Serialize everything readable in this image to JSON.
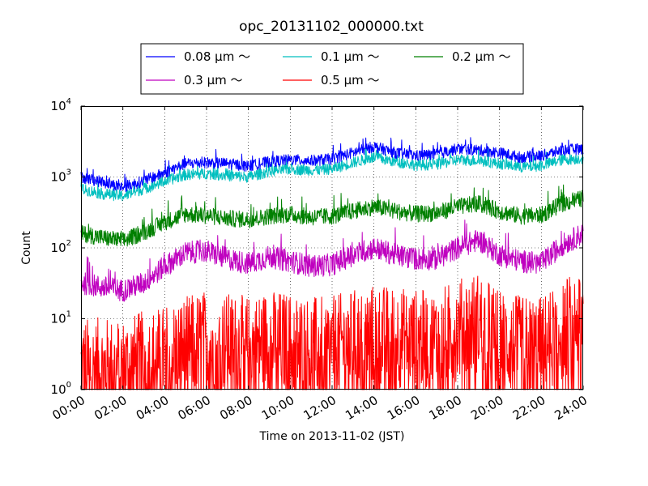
{
  "chart_data": {
    "type": "line",
    "title": "opc_20131102_000000.txt",
    "xlabel": "Time on 2013-11-02 (JST)",
    "ylabel": "Count",
    "xlim": [
      "00:00",
      "24:00"
    ],
    "ylim": [
      1,
      10000
    ],
    "yscale": "log",
    "grid": true,
    "legend_position": "top (above plot)",
    "x_ticks": [
      "00:00",
      "02:00",
      "04:00",
      "06:00",
      "08:00",
      "10:00",
      "12:00",
      "14:00",
      "16:00",
      "18:00",
      "20:00",
      "22:00",
      "24:00"
    ],
    "y_ticks": [
      {
        "base": "10",
        "exp": "0",
        "value": 1
      },
      {
        "base": "10",
        "exp": "1",
        "value": 10
      },
      {
        "base": "10",
        "exp": "2",
        "value": 100
      },
      {
        "base": "10",
        "exp": "3",
        "value": 1000
      },
      {
        "base": "10",
        "exp": "4",
        "value": 10000
      }
    ],
    "x_hours": [
      0,
      1,
      2,
      3,
      4,
      5,
      6,
      7,
      8,
      9,
      10,
      11,
      12,
      13,
      14,
      15,
      16,
      17,
      18,
      19,
      20,
      21,
      22,
      23,
      24
    ],
    "series": [
      {
        "name": "0.08 μm ～",
        "color": "#0000ff",
        "noise": 0.08,
        "values": [
          1000,
          850,
          720,
          880,
          1150,
          1550,
          1600,
          1550,
          1420,
          1650,
          1750,
          1700,
          1800,
          2200,
          2700,
          2200,
          2000,
          2100,
          2500,
          2400,
          2200,
          1900,
          2000,
          2400,
          2500
        ]
      },
      {
        "name": "0.1 μm ～",
        "color": "#00bfbf",
        "noise": 0.08,
        "values": [
          680,
          580,
          540,
          680,
          870,
          1080,
          1120,
          1050,
          1000,
          1200,
          1300,
          1250,
          1300,
          1600,
          1900,
          1650,
          1480,
          1500,
          1750,
          1700,
          1550,
          1380,
          1450,
          1750,
          1850
        ]
      },
      {
        "name": "0.2 μm ～",
        "color": "#008000",
        "noise": 0.12,
        "values": [
          160,
          140,
          125,
          165,
          230,
          300,
          285,
          260,
          250,
          280,
          300,
          270,
          280,
          330,
          380,
          330,
          300,
          310,
          380,
          420,
          330,
          280,
          290,
          420,
          500
        ]
      },
      {
        "name": "0.3 μm ～",
        "color": "#bf00bf",
        "noise": 0.16,
        "values": [
          32,
          28,
          25,
          32,
          55,
          85,
          90,
          70,
          60,
          75,
          65,
          55,
          58,
          80,
          100,
          80,
          70,
          70,
          100,
          130,
          80,
          65,
          60,
          110,
          160
        ]
      },
      {
        "name": "0.5 μm ～",
        "color": "#ff0000",
        "noise": 0.45,
        "values": [
          2,
          2,
          2,
          2.5,
          3,
          4,
          5,
          4.5,
          4,
          5,
          4.5,
          4,
          4,
          5,
          6,
          5.5,
          5,
          5,
          7,
          9,
          5,
          4,
          4,
          7,
          12
        ]
      }
    ]
  }
}
